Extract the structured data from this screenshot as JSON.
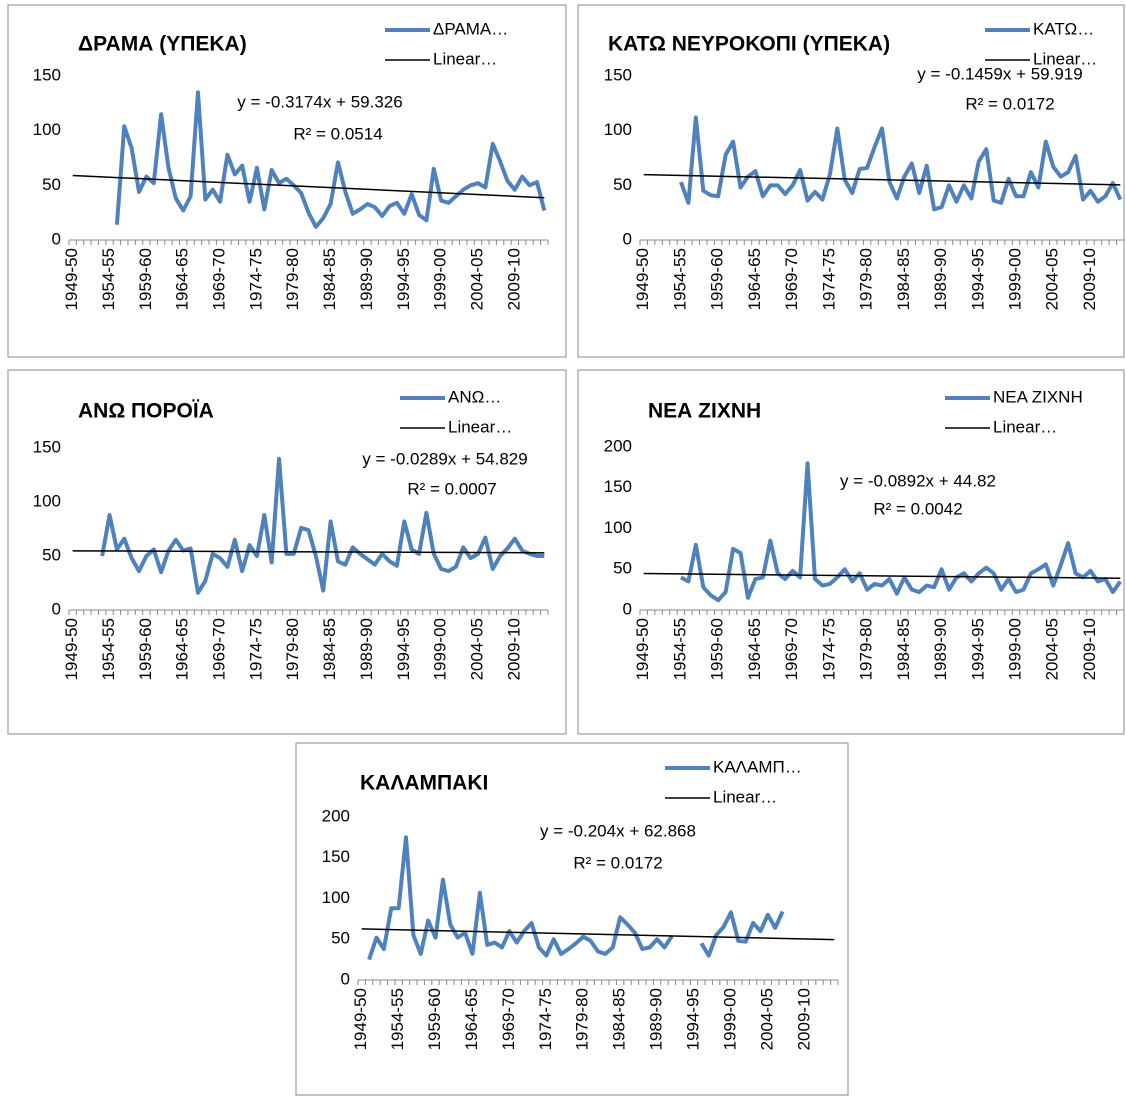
{
  "chart_data": [
    {
      "type": "line",
      "title": "ΔΡΑΜΑ (ΥΠΕΚΑ)",
      "categories": [
        "1949-50",
        null,
        null,
        null,
        null,
        "1954-55",
        null,
        null,
        null,
        null,
        "1959-60",
        null,
        null,
        null,
        null,
        "1964-65",
        null,
        null,
        null,
        null,
        "1969-70",
        null,
        null,
        null,
        null,
        "1974-75",
        null,
        null,
        null,
        null,
        "1979-80",
        null,
        null,
        null,
        null,
        "1984-85",
        null,
        null,
        null,
        null,
        "1989-90",
        null,
        null,
        null,
        null,
        "1994-95",
        null,
        null,
        null,
        null,
        "1999-00",
        null,
        null,
        null,
        null,
        "2004-05",
        null,
        null,
        null,
        null,
        "2009-10",
        null,
        null,
        null,
        null
      ],
      "series": [
        {
          "name": "ΔΡΑΜΑ…",
          "color": "#4f81bd",
          "values": [
            null,
            null,
            null,
            null,
            null,
            null,
            14,
            104,
            84,
            44,
            58,
            52,
            115,
            66,
            38,
            27,
            40,
            135,
            37,
            46,
            35,
            78,
            60,
            68,
            35,
            66,
            28,
            64,
            52,
            56,
            50,
            43,
            25,
            12,
            20,
            33,
            71,
            44,
            24,
            28,
            33,
            30,
            22,
            31,
            34,
            24,
            42,
            23,
            18,
            65,
            36,
            34,
            40,
            46,
            50,
            52,
            48,
            88,
            72,
            54,
            46,
            58,
            50,
            53,
            27
          ]
        }
      ],
      "trendline": {
        "name": "Linear…",
        "color": "#000000",
        "slope": -0.3174,
        "intercept": 59.326,
        "equation": "y = -0.3174x + 59.326",
        "r2": "R² = 0.0514"
      },
      "ylim": [
        0,
        150
      ],
      "yticks": [
        0,
        50,
        100,
        150
      ],
      "grid": false
    },
    {
      "type": "line",
      "title": "ΚΑΤΩ ΝΕΥΡΟΚΟΠΙ (ΥΠΕΚΑ)",
      "categories": [
        "1949-50",
        null,
        null,
        null,
        null,
        "1954-55",
        null,
        null,
        null,
        null,
        "1959-60",
        null,
        null,
        null,
        null,
        "1964-65",
        null,
        null,
        null,
        null,
        "1969-70",
        null,
        null,
        null,
        null,
        "1974-75",
        null,
        null,
        null,
        null,
        "1979-80",
        null,
        null,
        null,
        null,
        "1984-85",
        null,
        null,
        null,
        null,
        "1989-90",
        null,
        null,
        null,
        null,
        "1994-95",
        null,
        null,
        null,
        null,
        "1999-00",
        null,
        null,
        null,
        null,
        "2004-05",
        null,
        null,
        null,
        null,
        "2009-10",
        null,
        null,
        null,
        null
      ],
      "series": [
        {
          "name": "ΚΑΤΩ…",
          "color": "#4f81bd",
          "values": [
            null,
            null,
            null,
            null,
            null,
            53,
            34,
            112,
            45,
            41,
            40,
            78,
            90,
            48,
            58,
            63,
            40,
            50,
            50,
            42,
            50,
            64,
            36,
            44,
            37,
            60,
            102,
            55,
            43,
            65,
            66,
            85,
            102,
            53,
            38,
            58,
            70,
            43,
            68,
            28,
            30,
            50,
            35,
            50,
            38,
            72,
            83,
            36,
            34,
            56,
            40,
            40,
            62,
            48,
            90,
            67,
            58,
            62,
            77,
            37,
            45,
            35,
            40,
            52,
            37
          ]
        }
      ],
      "trendline": {
        "name": "Linear…",
        "color": "#000000",
        "slope": -0.1459,
        "intercept": 59.919,
        "equation": "y = -0.1459x + 59.919",
        "r2": "R² = 0.0172"
      },
      "ylim": [
        0,
        150
      ],
      "yticks": [
        0,
        50,
        100,
        150
      ],
      "grid": false
    },
    {
      "type": "line",
      "title": "ΑΝΩ ΠΟΡΟΪΑ",
      "categories": [
        "1949-50",
        null,
        null,
        null,
        null,
        "1954-55",
        null,
        null,
        null,
        null,
        "1959-60",
        null,
        null,
        null,
        null,
        "1964-65",
        null,
        null,
        null,
        null,
        "1969-70",
        null,
        null,
        null,
        null,
        "1974-75",
        null,
        null,
        null,
        null,
        "1979-80",
        null,
        null,
        null,
        null,
        "1984-85",
        null,
        null,
        null,
        null,
        "1989-90",
        null,
        null,
        null,
        null,
        "1994-95",
        null,
        null,
        null,
        null,
        "1999-00",
        null,
        null,
        null,
        null,
        "2004-05",
        null,
        null,
        null,
        null,
        "2009-10",
        null,
        null,
        null,
        null
      ],
      "series": [
        {
          "name": "ΑΝΩ…",
          "color": "#4f81bd",
          "values": [
            null,
            null,
            null,
            null,
            50,
            88,
            56,
            66,
            48,
            36,
            50,
            56,
            35,
            55,
            65,
            55,
            57,
            16,
            27,
            52,
            48,
            40,
            65,
            36,
            60,
            50,
            88,
            44,
            140,
            52,
            52,
            76,
            74,
            50,
            18,
            82,
            45,
            42,
            58,
            52,
            47,
            42,
            52,
            45,
            41,
            82,
            56,
            52,
            90,
            52,
            38,
            36,
            40,
            58,
            48,
            52,
            67,
            38,
            50,
            57,
            66,
            55,
            52,
            50,
            50
          ]
        }
      ],
      "trendline": {
        "name": "Linear…",
        "color": "#000000",
        "slope": -0.0289,
        "intercept": 54.829,
        "equation": "y = -0.0289x + 54.829",
        "r2": "R² = 0.0007"
      },
      "ylim": [
        0,
        150
      ],
      "yticks": [
        0,
        50,
        100,
        150
      ],
      "grid": false
    },
    {
      "type": "line",
      "title": "ΝΕΑ ΖΙΧΝΗ",
      "categories": [
        "1949-50",
        null,
        null,
        null,
        null,
        "1954-55",
        null,
        null,
        null,
        null,
        "1959-60",
        null,
        null,
        null,
        null,
        "1964-65",
        null,
        null,
        null,
        null,
        "1969-70",
        null,
        null,
        null,
        null,
        "1974-75",
        null,
        null,
        null,
        null,
        "1979-80",
        null,
        null,
        null,
        null,
        "1984-85",
        null,
        null,
        null,
        null,
        "1989-90",
        null,
        null,
        null,
        null,
        "1994-95",
        null,
        null,
        null,
        null,
        "1999-00",
        null,
        null,
        null,
        null,
        "2004-05",
        null,
        null,
        null,
        null,
        "2009-10",
        null,
        null,
        null,
        null
      ],
      "series": [
        {
          "name": "ΝΕΑ ΖΙΧΝΗ",
          "color": "#4f81bd",
          "values": [
            null,
            null,
            null,
            null,
            null,
            40,
            35,
            80,
            28,
            18,
            12,
            22,
            75,
            70,
            15,
            38,
            40,
            85,
            45,
            38,
            48,
            40,
            180,
            38,
            30,
            32,
            40,
            50,
            35,
            45,
            25,
            32,
            30,
            38,
            20,
            40,
            25,
            22,
            30,
            28,
            50,
            25,
            40,
            45,
            35,
            45,
            52,
            45,
            25,
            38,
            22,
            25,
            45,
            50,
            56,
            30,
            55,
            82,
            45,
            40,
            48,
            35,
            38,
            22,
            35
          ]
        }
      ],
      "trendline": {
        "name": "Linear…",
        "color": "#000000",
        "slope": -0.0892,
        "intercept": 44.82,
        "equation": "y = -0.0892x + 44.82",
        "r2": "R² = 0.0042"
      },
      "ylim": [
        0,
        200
      ],
      "yticks": [
        0,
        50,
        100,
        150,
        200
      ],
      "grid": false
    },
    {
      "type": "line",
      "title": "ΚΑΛΑΜΠΑΚΙ",
      "categories": [
        "1949-50",
        null,
        null,
        null,
        null,
        "1954-55",
        null,
        null,
        null,
        null,
        "1959-60",
        null,
        null,
        null,
        null,
        "1964-65",
        null,
        null,
        null,
        null,
        "1969-70",
        null,
        null,
        null,
        null,
        "1974-75",
        null,
        null,
        null,
        null,
        "1979-80",
        null,
        null,
        null,
        null,
        "1984-85",
        null,
        null,
        null,
        null,
        "1989-90",
        null,
        null,
        null,
        null,
        "1994-95",
        null,
        null,
        null,
        null,
        "1999-00",
        null,
        null,
        null,
        null,
        "2004-05",
        null,
        null,
        null,
        null,
        "2009-10",
        null,
        null,
        null,
        null
      ],
      "series": [
        {
          "name": "ΚΑΛΑΜΠ…",
          "color": "#4f81bd",
          "values": [
            null,
            25,
            52,
            38,
            88,
            88,
            175,
            55,
            32,
            73,
            52,
            123,
            68,
            52,
            58,
            32,
            107,
            43,
            46,
            40,
            60,
            46,
            60,
            70,
            40,
            30,
            50,
            32,
            38,
            45,
            53,
            48,
            35,
            32,
            40,
            77,
            68,
            58,
            38,
            40,
            50,
            40,
            54,
            null,
            null,
            null,
            45,
            30,
            55,
            65,
            83,
            48,
            47,
            70,
            60,
            80,
            64,
            84,
            null,
            null,
            null,
            null,
            null,
            null,
            null
          ]
        }
      ],
      "trendline": {
        "name": "Linear…",
        "color": "#000000",
        "slope": -0.204,
        "intercept": 62.868,
        "equation": "y = -0.204x + 62.868",
        "r2": "R² = 0.0172"
      },
      "ylim": [
        0,
        200
      ],
      "yticks": [
        0,
        50,
        100,
        150,
        200
      ],
      "grid": false
    }
  ]
}
